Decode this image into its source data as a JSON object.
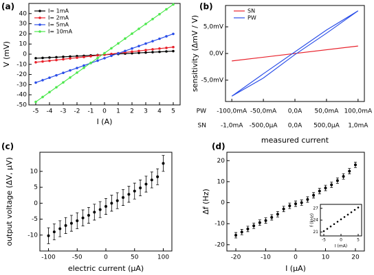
{
  "chart_data": [
    {
      "type": "line",
      "label": "(a)",
      "x_label": "I (A)",
      "y_label": "V (mV)",
      "markers": true,
      "x": [
        -5,
        -4.5,
        -4,
        -3.5,
        -3,
        -2.5,
        -2,
        -1.5,
        -1,
        -0.5,
        0,
        0.5,
        1,
        1.5,
        2,
        2.5,
        3,
        3.5,
        4,
        4.5,
        5
      ],
      "xlim": [
        -5.5,
        5.5
      ],
      "xticks": [
        -5,
        -4,
        -3,
        -2,
        -1,
        0,
        1,
        2,
        3,
        4,
        5
      ],
      "ylim": [
        -50,
        50
      ],
      "yticks": [
        -50,
        -40,
        -30,
        -20,
        -10,
        0,
        10,
        20,
        30,
        40
      ],
      "series": [
        {
          "name": "I= 1mA",
          "color": "#000000",
          "values": [
            -4,
            -3.7,
            -3.3,
            -3,
            -2.6,
            -2.3,
            -1.9,
            -1.6,
            -1.2,
            -0.9,
            -0.5,
            -0.2,
            0.2,
            0.6,
            0.9,
            1.3,
            1.6,
            2,
            2.3,
            2.7,
            3
          ]
        },
        {
          "name": "I= 2mA",
          "color": "#e8202a",
          "values": [
            -8,
            -7.2,
            -6.5,
            -5.8,
            -5,
            -4.2,
            -3.5,
            -2.8,
            -2,
            -1.2,
            -0.5,
            0.2,
            1,
            1.8,
            2.5,
            3.2,
            4,
            4.8,
            5.5,
            6.2,
            7
          ]
        },
        {
          "name": "I= 5mA",
          "color": "#2a4ee8",
          "values": [
            -28,
            -25.6,
            -23.2,
            -20.8,
            -18.4,
            -16,
            -13.6,
            -11.2,
            -8.8,
            -6.4,
            -4,
            -1.6,
            0.8,
            3.2,
            5.6,
            8,
            10.4,
            12.8,
            15.2,
            17.6,
            20
          ]
        },
        {
          "name": "I= 10mA",
          "color": "#4ee84e",
          "values": [
            -47,
            -42.2,
            -37.4,
            -32.6,
            -27.8,
            -23,
            -18.2,
            -13.4,
            -8.6,
            -3.8,
            1,
            5.8,
            10.6,
            15.4,
            20.2,
            25,
            29.8,
            34.6,
            39.4,
            44.2,
            49
          ]
        }
      ]
    },
    {
      "type": "line",
      "label": "(b)",
      "x_label": "measured current",
      "y_label": "sensitivity (ΔmV / V)",
      "xlim": [
        -110,
        110
      ],
      "xticks": [
        {
          "value": -100,
          "label": "-100,0mA"
        },
        {
          "value": -50,
          "label": "-50,0mA"
        },
        {
          "value": 0,
          "label": "0,0A"
        },
        {
          "value": 50,
          "label": "50,0mA"
        },
        {
          "value": 100,
          "label": "100,0mA"
        }
      ],
      "x2lim": [
        -1.1,
        1.1
      ],
      "x2ticks": [
        {
          "value": -1,
          "label": "-1,0mA"
        },
        {
          "value": -0.5,
          "label": "-500,0µA"
        },
        {
          "value": 0,
          "label": "0,0A"
        },
        {
          "value": 0.5,
          "label": "500,0µA"
        },
        {
          "value": 1,
          "label": "1,0mA"
        }
      ],
      "ylim": [
        -9,
        9
      ],
      "yticks": [
        {
          "value": -5,
          "label": "-5,0mV"
        },
        {
          "value": 0,
          "label": "0,0V"
        },
        {
          "value": 5,
          "label": "5,0mV"
        }
      ],
      "series": [
        {
          "name": "SN",
          "color": "#e8202a",
          "axis": "x2",
          "x": [
            -1,
            1
          ],
          "values": [
            -1.4,
            1.4
          ]
        },
        {
          "name": "PW",
          "color": "#2a4ee8",
          "x": [
            -100,
            -50,
            0,
            50,
            100,
            50,
            0,
            -50,
            -100
          ],
          "values": [
            -8,
            -4.6,
            -0.2,
            3.8,
            8,
            4.4,
            0.3,
            -3.8,
            -8
          ]
        }
      ]
    },
    {
      "type": "errorbar",
      "label": "(c)",
      "x_label": "electric current (µA)",
      "y_label": "output voltage (ΔV, µV)",
      "x": [
        -100,
        -90,
        -80,
        -70,
        -60,
        -50,
        -40,
        -30,
        -20,
        -10,
        0,
        10,
        20,
        30,
        40,
        50,
        60,
        70,
        80,
        90,
        100
      ],
      "values": [
        -10.2,
        -9,
        -8,
        -7,
        -6.3,
        -5.5,
        -4.6,
        -3.8,
        -2.8,
        -2,
        -1,
        0,
        0.8,
        1.8,
        2.8,
        3.8,
        4.8,
        6,
        7.3,
        8.3,
        12.5
      ],
      "errors": [
        2.5,
        2.5,
        2.5,
        2.5,
        2.5,
        2.5,
        2.5,
        2.5,
        2.5,
        2.5,
        2.5,
        2.5,
        2.5,
        2.5,
        2.5,
        2.5,
        2.5,
        2.5,
        2.5,
        2.5,
        2.5
      ],
      "color": "#000000",
      "xlim": [
        -115,
        115
      ],
      "xticks": [
        -100,
        -50,
        0,
        50,
        100
      ],
      "ylim": [
        -15,
        16
      ],
      "yticks": [
        -10,
        -5,
        0,
        5,
        10
      ]
    },
    {
      "type": "errorbar",
      "label": "(d)",
      "x_label": "I (µA)",
      "y_label": "Δf (Hz)",
      "x": [
        -20,
        -18,
        -16,
        -14,
        -12,
        -10,
        -8,
        -6,
        -4,
        -2,
        0,
        2,
        4,
        6,
        8,
        10,
        12,
        14,
        16,
        18,
        20
      ],
      "values": [
        -15.5,
        -14,
        -12.5,
        -11,
        -9.5,
        -8.5,
        -7,
        -5.5,
        -3,
        -1.5,
        -0.5,
        0,
        1.5,
        3.5,
        5.5,
        7,
        8.5,
        10.5,
        12.5,
        15,
        18
      ],
      "errors": [
        1.3,
        1.3,
        1.3,
        1.3,
        1.3,
        1.3,
        1.3,
        1.3,
        1.3,
        1.3,
        1.3,
        1.3,
        1.3,
        1.3,
        1.3,
        1.3,
        1.3,
        1.3,
        1.3,
        1.3,
        1.3
      ],
      "color": "#000000",
      "xlim": [
        -23,
        23
      ],
      "xticks": [
        -20,
        -10,
        0,
        10,
        20
      ],
      "ylim": [
        -23,
        24
      ],
      "yticks": [
        -20,
        -10,
        0,
        10,
        20
      ]
    },
    {
      "type": "scatter",
      "x_label": "I (mA)",
      "y_label": "f (kHz)",
      "x": [
        -5,
        -4,
        -3,
        -2,
        -1,
        0,
        1,
        2,
        3,
        4,
        5
      ],
      "values": [
        21.2,
        21.8,
        22.4,
        23,
        23.6,
        24.2,
        24.8,
        25.4,
        26,
        26.6,
        27.2
      ],
      "color": "#000000",
      "xlim": [
        -6,
        6
      ],
      "xticks": [
        -5,
        0,
        5
      ],
      "ylim": [
        20,
        28
      ],
      "yticks": [
        21,
        24,
        27
      ]
    }
  ]
}
